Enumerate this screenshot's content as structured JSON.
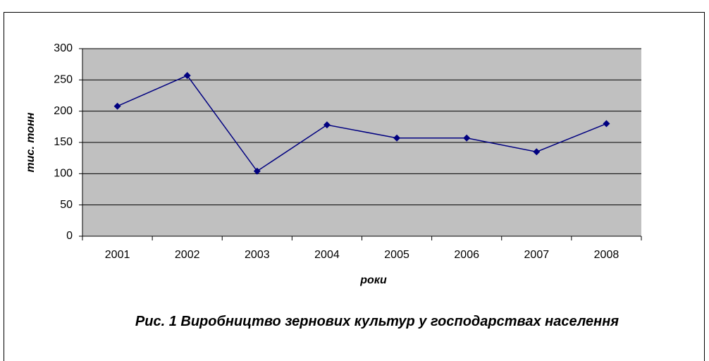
{
  "chart_data": {
    "type": "line",
    "title": "Рис. 1 Виробництво зернових культур у господарствах населення",
    "x_label": "роки",
    "y_label": "тис. тонн",
    "categories": [
      "2001",
      "2002",
      "2003",
      "2004",
      "2005",
      "2006",
      "2007",
      "2008"
    ],
    "values": [
      208,
      257,
      104,
      178,
      157,
      157,
      135,
      180
    ],
    "color": "#000080",
    "plot_background": "#c0c0c0",
    "ylim": [
      0,
      300
    ],
    "yticks": [
      0,
      50,
      100,
      150,
      200,
      250,
      300
    ],
    "grid": true
  }
}
